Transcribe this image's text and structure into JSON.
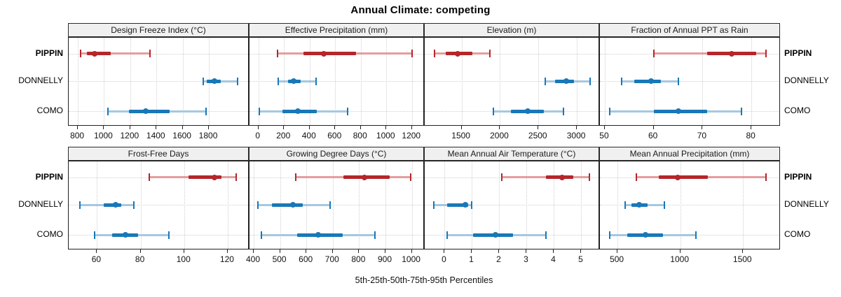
{
  "title": "Annual Climate: competing",
  "footer_label": "5th-25th-50th-75th-95th Percentiles",
  "sites": [
    "PIPPIN",
    "DONNELLY",
    "COMO"
  ],
  "colors": {
    "red_dark": "#b5262b",
    "red_light": "#e59d9e",
    "blue_dark": "#1878b8",
    "blue_light": "#a5c8e1",
    "strip_bg": "#f0f0f0",
    "panel_border": "#222222",
    "gridline": "#cfcfcf"
  },
  "chart_data": [
    {
      "type": "interval-dotplot",
      "title": "Design Freeze Index (°C)",
      "ticks": [
        800,
        1000,
        1200,
        1400,
        1600,
        1800
      ],
      "xlim": [
        730,
        2110
      ],
      "series": [
        {
          "site": "PIPPIN",
          "color": "red",
          "percentiles": [
            820,
            870,
            930,
            1050,
            1350
          ]
        },
        {
          "site": "DONNELLY",
          "color": "blue",
          "percentiles": [
            1755,
            1785,
            1840,
            1890,
            2020
          ]
        },
        {
          "site": "COMO",
          "color": "blue",
          "percentiles": [
            1030,
            1190,
            1320,
            1500,
            1780
          ]
        }
      ]
    },
    {
      "type": "interval-dotplot",
      "title": "Effective Precipitation (mm)",
      "ticks": [
        0,
        200,
        400,
        600,
        800,
        1000,
        1200
      ],
      "xlim": [
        -70,
        1300
      ],
      "series": [
        {
          "site": "PIPPIN",
          "color": "red",
          "percentiles": [
            150,
            350,
            510,
            765,
            1200
          ]
        },
        {
          "site": "DONNELLY",
          "color": "blue",
          "percentiles": [
            155,
            230,
            275,
            330,
            450
          ]
        },
        {
          "site": "COMO",
          "color": "blue",
          "percentiles": [
            5,
            190,
            310,
            455,
            695
          ]
        }
      ]
    },
    {
      "type": "interval-dotplot",
      "title": "Elevation (m)",
      "ticks": [
        1500,
        2000,
        2500,
        3000
      ],
      "xlim": [
        1020,
        3300
      ],
      "series": [
        {
          "site": "PIPPIN",
          "color": "red",
          "percentiles": [
            1150,
            1295,
            1450,
            1640,
            1870
          ]
        },
        {
          "site": "DONNELLY",
          "color": "blue",
          "percentiles": [
            2590,
            2715,
            2860,
            2965,
            3170
          ]
        },
        {
          "site": "COMO",
          "color": "blue",
          "percentiles": [
            1915,
            2140,
            2365,
            2575,
            2825
          ]
        }
      ]
    },
    {
      "type": "interval-dotplot",
      "title": "Fraction of Annual PPT as Rain",
      "ticks": [
        50,
        60,
        70,
        80
      ],
      "xlim": [
        49,
        86
      ],
      "series": [
        {
          "site": "PIPPIN",
          "color": "red",
          "percentiles": [
            60,
            71,
            76,
            81,
            83
          ]
        },
        {
          "site": "DONNELLY",
          "color": "blue",
          "percentiles": [
            53.5,
            56,
            59.5,
            61.5,
            65
          ]
        },
        {
          "site": "COMO",
          "color": "blue",
          "percentiles": [
            51,
            60,
            65,
            71,
            78
          ]
        }
      ]
    },
    {
      "type": "interval-dotplot",
      "title": "Frost-Free Days",
      "ticks": [
        60,
        80,
        100,
        120
      ],
      "xlim": [
        47,
        130
      ],
      "series": [
        {
          "site": "PIPPIN",
          "color": "red",
          "percentiles": [
            84,
            102,
            114,
            117,
            124
          ]
        },
        {
          "site": "DONNELLY",
          "color": "blue",
          "percentiles": [
            52,
            63,
            68.5,
            71,
            77
          ]
        },
        {
          "site": "COMO",
          "color": "blue",
          "percentiles": [
            59,
            67,
            73,
            79,
            93
          ]
        }
      ]
    },
    {
      "type": "interval-dotplot",
      "title": "Growing Degree Days (°C)",
      "ticks": [
        400,
        500,
        600,
        700,
        800,
        900,
        1000
      ],
      "xlim": [
        384,
        1049
      ],
      "series": [
        {
          "site": "PIPPIN",
          "color": "red",
          "percentiles": [
            560,
            740,
            820,
            915,
            995
          ]
        },
        {
          "site": "DONNELLY",
          "color": "blue",
          "percentiles": [
            415,
            470,
            550,
            585,
            690
          ]
        },
        {
          "site": "COMO",
          "color": "blue",
          "percentiles": [
            430,
            565,
            645,
            738,
            860
          ]
        }
      ]
    },
    {
      "type": "interval-dotplot",
      "title": "Mean Annual Air Temperature (°C)",
      "ticks": [
        0,
        1,
        2,
        3,
        4,
        5
      ],
      "xlim": [
        -0.73,
        5.68
      ],
      "series": [
        {
          "site": "PIPPIN",
          "color": "red",
          "percentiles": [
            2.1,
            3.7,
            4.3,
            4.7,
            5.3
          ]
        },
        {
          "site": "DONNELLY",
          "color": "blue",
          "percentiles": [
            -0.4,
            0.1,
            0.75,
            0.85,
            1.0
          ]
        },
        {
          "site": "COMO",
          "color": "blue",
          "percentiles": [
            0.1,
            1.05,
            1.85,
            2.5,
            3.7
          ]
        }
      ]
    },
    {
      "type": "interval-dotplot",
      "title": "Mean Annual Precipitation (mm)",
      "ticks": [
        500,
        1000,
        1500
      ],
      "xlim": [
        360,
        1800
      ],
      "series": [
        {
          "site": "PIPPIN",
          "color": "red",
          "percentiles": [
            650,
            830,
            980,
            1220,
            1680
          ]
        },
        {
          "site": "DONNELLY",
          "color": "blue",
          "percentiles": [
            560,
            610,
            670,
            740,
            875
          ]
        },
        {
          "site": "COMO",
          "color": "blue",
          "percentiles": [
            440,
            580,
            720,
            865,
            1125
          ]
        }
      ]
    }
  ]
}
